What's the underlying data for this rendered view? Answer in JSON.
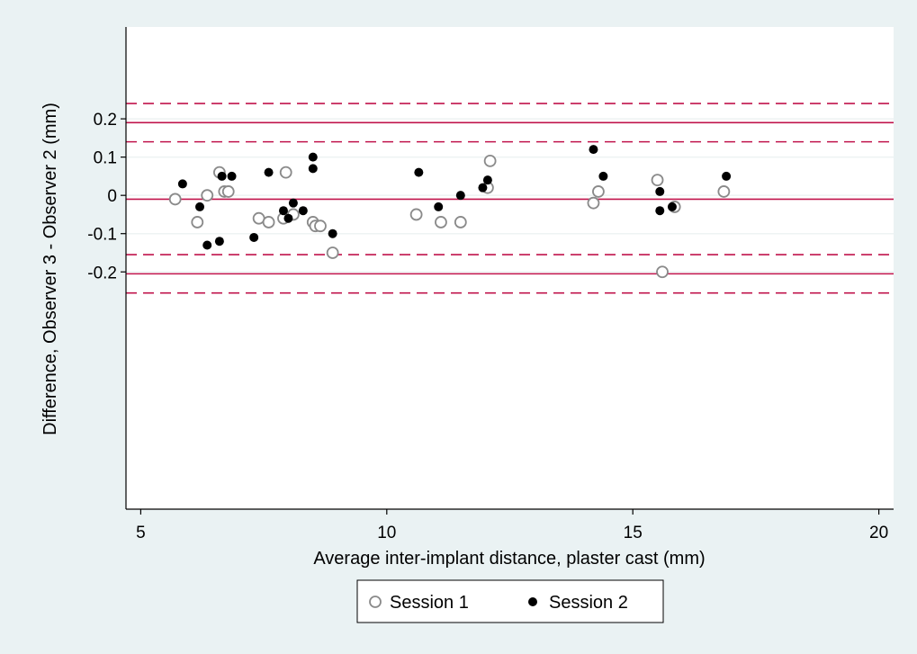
{
  "chart_data": {
    "type": "scatter",
    "title": "",
    "xlabel": "Average inter-implant distance, plaster cast (mm)",
    "ylabel": "Difference, Observer 3 - Observer 2 (mm)",
    "xlim": [
      4.7,
      20.3
    ],
    "ylim": [
      -0.82,
      0.44
    ],
    "x_ticks": [
      5,
      10,
      15,
      20
    ],
    "y_ticks": [
      -0.2,
      -0.1,
      0,
      0.1,
      0.2
    ],
    "x_tick_labels": [
      "5",
      "10",
      "15",
      "20"
    ],
    "y_tick_labels": [
      "-0.2",
      "-0.1",
      "0",
      "0.1",
      "0.2"
    ],
    "grid": true,
    "legend_position": "bottom",
    "reference_lines": {
      "color": "#c0144c",
      "solid": [
        0.19,
        -0.01,
        -0.205
      ],
      "dashed": [
        0.24,
        0.14,
        -0.155,
        -0.255
      ]
    },
    "series": [
      {
        "name": "Session 1",
        "marker": "hollow-circle",
        "color": "#8a8a8a",
        "points": [
          [
            5.7,
            -0.01
          ],
          [
            6.15,
            -0.07
          ],
          [
            6.35,
            0.0
          ],
          [
            6.6,
            0.06
          ],
          [
            6.7,
            0.01
          ],
          [
            6.78,
            0.01
          ],
          [
            7.4,
            -0.06
          ],
          [
            7.6,
            -0.07
          ],
          [
            7.9,
            -0.06
          ],
          [
            7.95,
            0.06
          ],
          [
            8.1,
            -0.05
          ],
          [
            8.5,
            -0.07
          ],
          [
            8.55,
            -0.08
          ],
          [
            8.65,
            -0.08
          ],
          [
            8.9,
            -0.15
          ],
          [
            10.6,
            -0.05
          ],
          [
            11.1,
            -0.07
          ],
          [
            11.5,
            -0.07
          ],
          [
            12.05,
            0.02
          ],
          [
            12.1,
            0.09
          ],
          [
            14.2,
            -0.02
          ],
          [
            14.3,
            0.01
          ],
          [
            15.5,
            0.04
          ],
          [
            15.6,
            -0.2
          ],
          [
            15.85,
            -0.03
          ],
          [
            16.85,
            0.01
          ]
        ]
      },
      {
        "name": "Session 2",
        "marker": "filled-circle",
        "color": "#000000",
        "points": [
          [
            5.85,
            0.03
          ],
          [
            6.2,
            -0.03
          ],
          [
            6.35,
            -0.13
          ],
          [
            6.6,
            -0.12
          ],
          [
            6.65,
            0.05
          ],
          [
            6.85,
            0.05
          ],
          [
            7.3,
            -0.11
          ],
          [
            7.6,
            0.06
          ],
          [
            7.9,
            -0.04
          ],
          [
            8.0,
            -0.06
          ],
          [
            8.1,
            -0.02
          ],
          [
            8.3,
            -0.04
          ],
          [
            8.5,
            0.1
          ],
          [
            8.5,
            0.07
          ],
          [
            8.9,
            -0.1
          ],
          [
            10.65,
            0.06
          ],
          [
            11.05,
            -0.03
          ],
          [
            11.5,
            0.0
          ],
          [
            11.95,
            0.02
          ],
          [
            12.05,
            0.04
          ],
          [
            14.2,
            0.12
          ],
          [
            14.4,
            0.05
          ],
          [
            15.55,
            0.01
          ],
          [
            15.55,
            -0.04
          ],
          [
            15.8,
            -0.03
          ],
          [
            16.9,
            0.05
          ]
        ]
      }
    ]
  }
}
